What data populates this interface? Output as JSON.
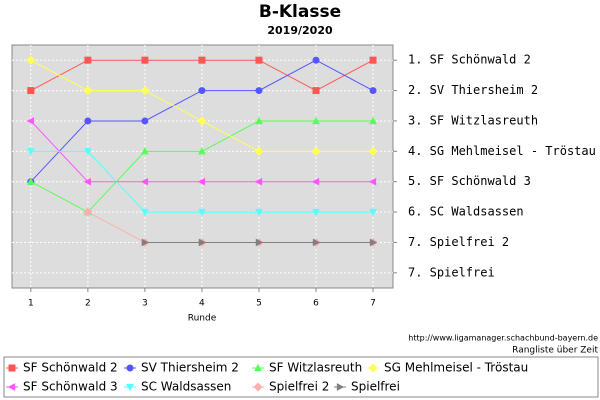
{
  "chart_data": {
    "type": "line",
    "title": "B-Klasse",
    "subtitle": "2019/2020",
    "xlabel": "Runde",
    "source": "http://www.ligamanager.schachbund-bayern.de",
    "caption": "Rangliste über Zeit",
    "x": [
      1,
      2,
      3,
      4,
      5,
      6,
      7
    ],
    "xlim": [
      0.67,
      7.35
    ],
    "xticks": [
      1,
      2,
      3,
      4,
      5,
      6,
      7
    ],
    "ylim": [
      8.5,
      0.5
    ],
    "yticks": [
      {
        "value": 1,
        "label": "1. SF Schönwald 2"
      },
      {
        "value": 2,
        "label": "2. SV Thiersheim 2"
      },
      {
        "value": 3,
        "label": "3. SF Witzlasreuth"
      },
      {
        "value": 4,
        "label": "4. SG Mehlmeisel - Tröstau"
      },
      {
        "value": 5,
        "label": "5. SF Schönwald 3"
      },
      {
        "value": 6,
        "label": "6. SC Waldsassen"
      },
      {
        "value": 7,
        "label": "7. Spielfrei 2"
      },
      {
        "value": 8,
        "label": "7. Spielfrei"
      }
    ],
    "grid": true,
    "legend": "bottom",
    "series": [
      {
        "name": "SF Schönwald 2",
        "color": "#ff5555",
        "marker": "square",
        "values": [
          2,
          1,
          1,
          1,
          1,
          2,
          1
        ]
      },
      {
        "name": "SV Thiersheim 2",
        "color": "#5555ff",
        "marker": "circle",
        "values": [
          5,
          3,
          3,
          2,
          2,
          1,
          2
        ]
      },
      {
        "name": "SF Witzlasreuth",
        "color": "#55ff55",
        "marker": "triangle-up",
        "values": [
          5,
          6,
          4,
          4,
          3,
          3,
          3
        ]
      },
      {
        "name": "SG Mehlmeisel - Tröstau",
        "color": "#ffff55",
        "marker": "diamond",
        "values": [
          1,
          2,
          2,
          3,
          4,
          4,
          4
        ]
      },
      {
        "name": "SF Schönwald 3",
        "color": "#ff55ff",
        "marker": "triangle-left",
        "values": [
          3,
          5,
          5,
          5,
          5,
          5,
          5
        ]
      },
      {
        "name": "SC Waldsassen",
        "color": "#55ffff",
        "marker": "triangle-down",
        "values": [
          4,
          4,
          6,
          6,
          6,
          6,
          6
        ]
      },
      {
        "name": "Spielfrei 2",
        "color": "#ffafaf",
        "marker": "diamond",
        "values": [
          null,
          6,
          7,
          7,
          7,
          7,
          7
        ]
      },
      {
        "name": "Spielfrei",
        "color": "#808080",
        "marker": "triangle-right",
        "values": [
          null,
          null,
          7,
          7,
          7,
          7,
          7
        ]
      }
    ]
  }
}
